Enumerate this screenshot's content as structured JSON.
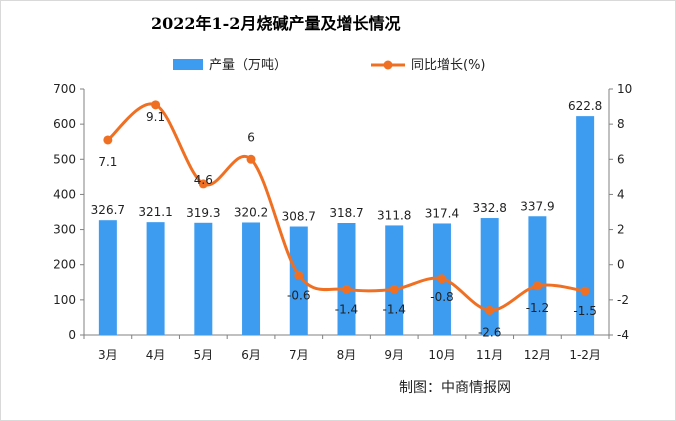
{
  "chart_data": {
    "type": "bar+line",
    "title": "2022年1-2月烧碱产量及增长情况",
    "categories": [
      "3月",
      "4月",
      "5月",
      "6月",
      "7月",
      "8月",
      "9月",
      "10月",
      "11月",
      "12月",
      "1-2月"
    ],
    "series": [
      {
        "name": "产量（万吨）",
        "type": "bar",
        "axis": "left",
        "color": "#3d9cf0",
        "values": [
          326.7,
          321.1,
          319.3,
          320.2,
          308.7,
          318.7,
          311.8,
          317.4,
          332.8,
          337.9,
          622.8
        ],
        "labels": [
          "326.7",
          "321.1",
          "319.3",
          "320.2",
          "308.7",
          "318.7",
          "311.8",
          "317.4",
          "332.8",
          "337.9",
          "622.8"
        ]
      },
      {
        "name": "同比增长(%)",
        "type": "line",
        "axis": "right",
        "color": "#f07023",
        "smooth": true,
        "values": [
          7.1,
          9.1,
          4.6,
          6,
          -0.6,
          -1.4,
          -1.4,
          -0.8,
          -2.6,
          -1.2,
          -1.5
        ],
        "labels": [
          "7.1",
          "9.1",
          "4.6",
          "6",
          "-0.6",
          "-1.4",
          "-1.4",
          "-0.8",
          "-2.6",
          "-1.2",
          "-1.5"
        ]
      }
    ],
    "y_left": {
      "min": 0,
      "max": 700,
      "step": 100,
      "ticks": [
        "0",
        "100",
        "200",
        "300",
        "400",
        "500",
        "600",
        "700"
      ]
    },
    "y_right": {
      "min": -4,
      "max": 10,
      "step": 2,
      "ticks": [
        "-4",
        "-2",
        "0",
        "2",
        "4",
        "6",
        "8",
        "10"
      ]
    },
    "legend": {
      "position": "top"
    },
    "grid": false
  },
  "source_text": "制图：中商情报网"
}
